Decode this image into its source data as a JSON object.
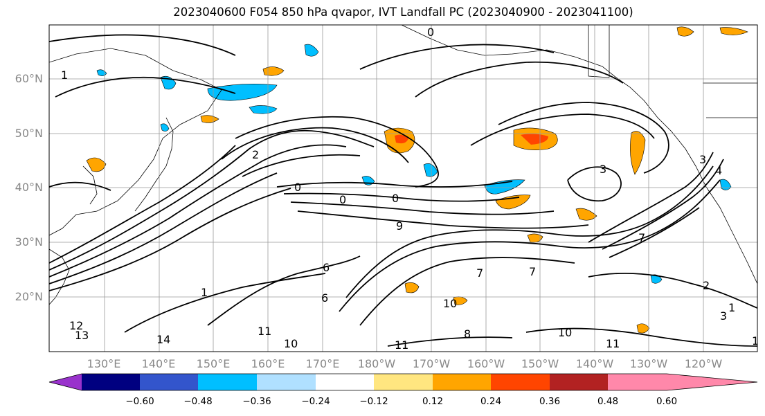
{
  "title": "2023040600 F054 850 hPa qvapor, IVT Landfall PC (2023040900 - 2023041100)",
  "lat_labels": [
    "60°N",
    "50°N",
    "40°N",
    "30°N",
    "20°N"
  ],
  "lon_labels": [
    "130°E",
    "140°E",
    "150°E",
    "160°E",
    "170°E",
    "180°W",
    "170°W",
    "160°W",
    "150°W",
    "140°W",
    "130°W",
    "120°W"
  ],
  "colorbar": {
    "colors": [
      "#9932cc",
      "#000080",
      "#3355cc",
      "#00bfff",
      "#b0e0ff",
      "#ffffff",
      "#ffe680",
      "#ffa500",
      "#ff4500",
      "#b22222",
      "#ff88aa"
    ],
    "ticks": [
      "−0.60",
      "−0.48",
      "−0.36",
      "−0.24",
      "−0.12",
      "0.12",
      "0.24",
      "0.36",
      "0.48",
      "0.60"
    ]
  },
  "contour_labels": [
    "0",
    "1",
    "9",
    "2",
    "7",
    "3",
    "0",
    "0",
    "0",
    "10",
    "11",
    "11",
    "10",
    "1",
    "3",
    "2",
    "1",
    "10",
    "11",
    "12",
    "13",
    "14",
    "6",
    "8",
    "4",
    "7",
    "3",
    "6",
    "7",
    "1"
  ]
}
